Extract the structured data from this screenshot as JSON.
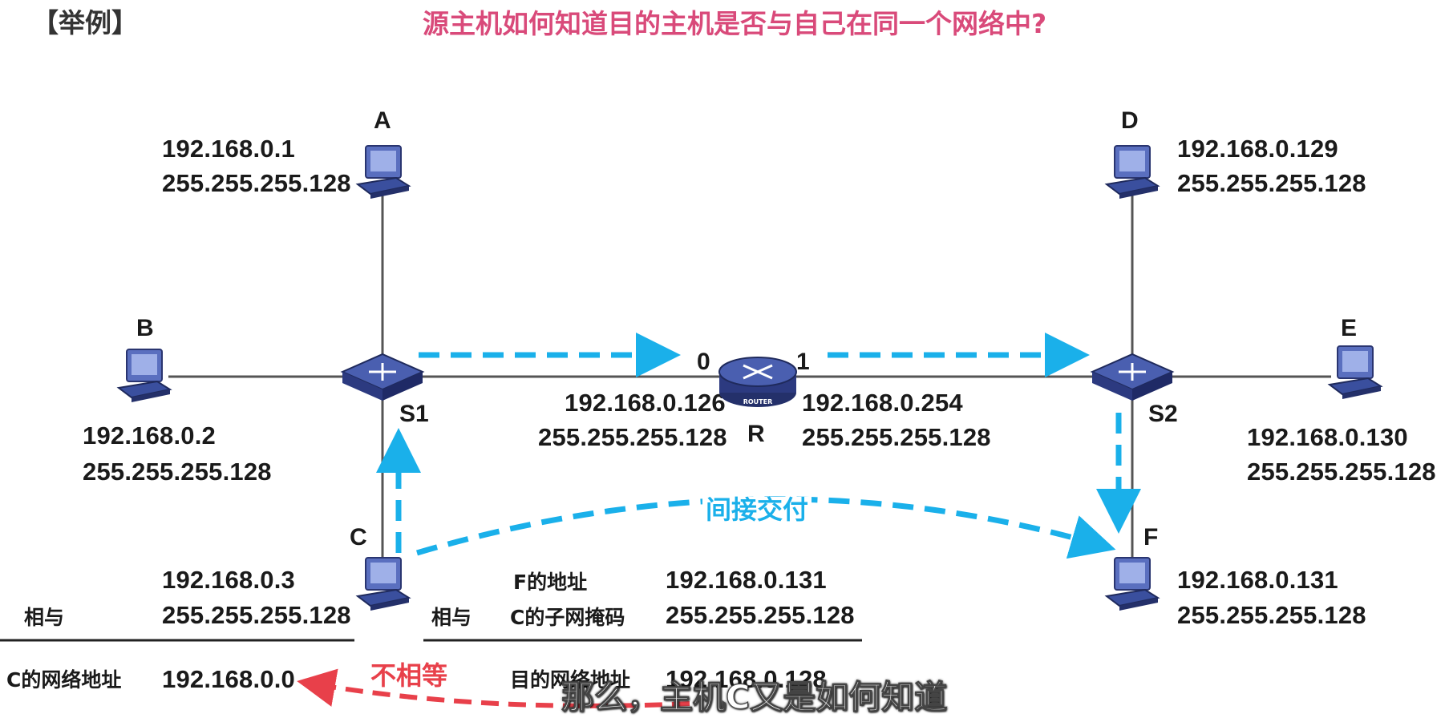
{
  "header": {
    "tag": "【举例】",
    "title": "源主机如何知道目的主机是否与自己在同一个网络中?"
  },
  "hosts": {
    "A": {
      "label": "A",
      "ip": "192.168.0.1",
      "mask": "255.255.255.128"
    },
    "B": {
      "label": "B",
      "ip": "192.168.0.2",
      "mask": "255.255.255.128"
    },
    "C": {
      "label": "C",
      "ip": "192.168.0.3",
      "mask": "255.255.255.128"
    },
    "D": {
      "label": "D",
      "ip": "192.168.0.129",
      "mask": "255.255.255.128"
    },
    "E": {
      "label": "E",
      "ip": "192.168.0.130",
      "mask": "255.255.255.128"
    },
    "F": {
      "label": "F",
      "ip": "192.168.0.131",
      "mask": "255.255.255.128"
    }
  },
  "switches": {
    "S1": {
      "label": "S1",
      "icon_text": "SWITCH"
    },
    "S2": {
      "label": "S2",
      "icon_text": "SWITCH"
    }
  },
  "router": {
    "label": "R",
    "icon_text": "ROUTER",
    "port0": {
      "label": "0",
      "ip": "192.168.0.126",
      "mask": "255.255.255.128"
    },
    "port1": {
      "label": "1",
      "ip": "192.168.0.254",
      "mask": "255.255.255.128"
    }
  },
  "calc_left": {
    "op": "相与",
    "result_label": "C的网络地址",
    "result_value": "192.168.0.0"
  },
  "calc_right": {
    "op": "相与",
    "row1_label": "F的地址",
    "row1_value": "192.168.0.131",
    "row2_label": "C的子网掩码",
    "row2_value": "255.255.255.128",
    "result_label": "目的网络地址",
    "result_value": "192.168.0.128"
  },
  "annotations": {
    "indirect": "间接交付",
    "not_equal": "不相等"
  },
  "subtitle": "那么，主机C又是如何知道",
  "colors": {
    "title": "#d94a7a",
    "arrow_blue": "#1ab0ea",
    "arrow_red": "#e8404a",
    "device_blue": "#3a4f9e",
    "link_gray": "#555555"
  }
}
